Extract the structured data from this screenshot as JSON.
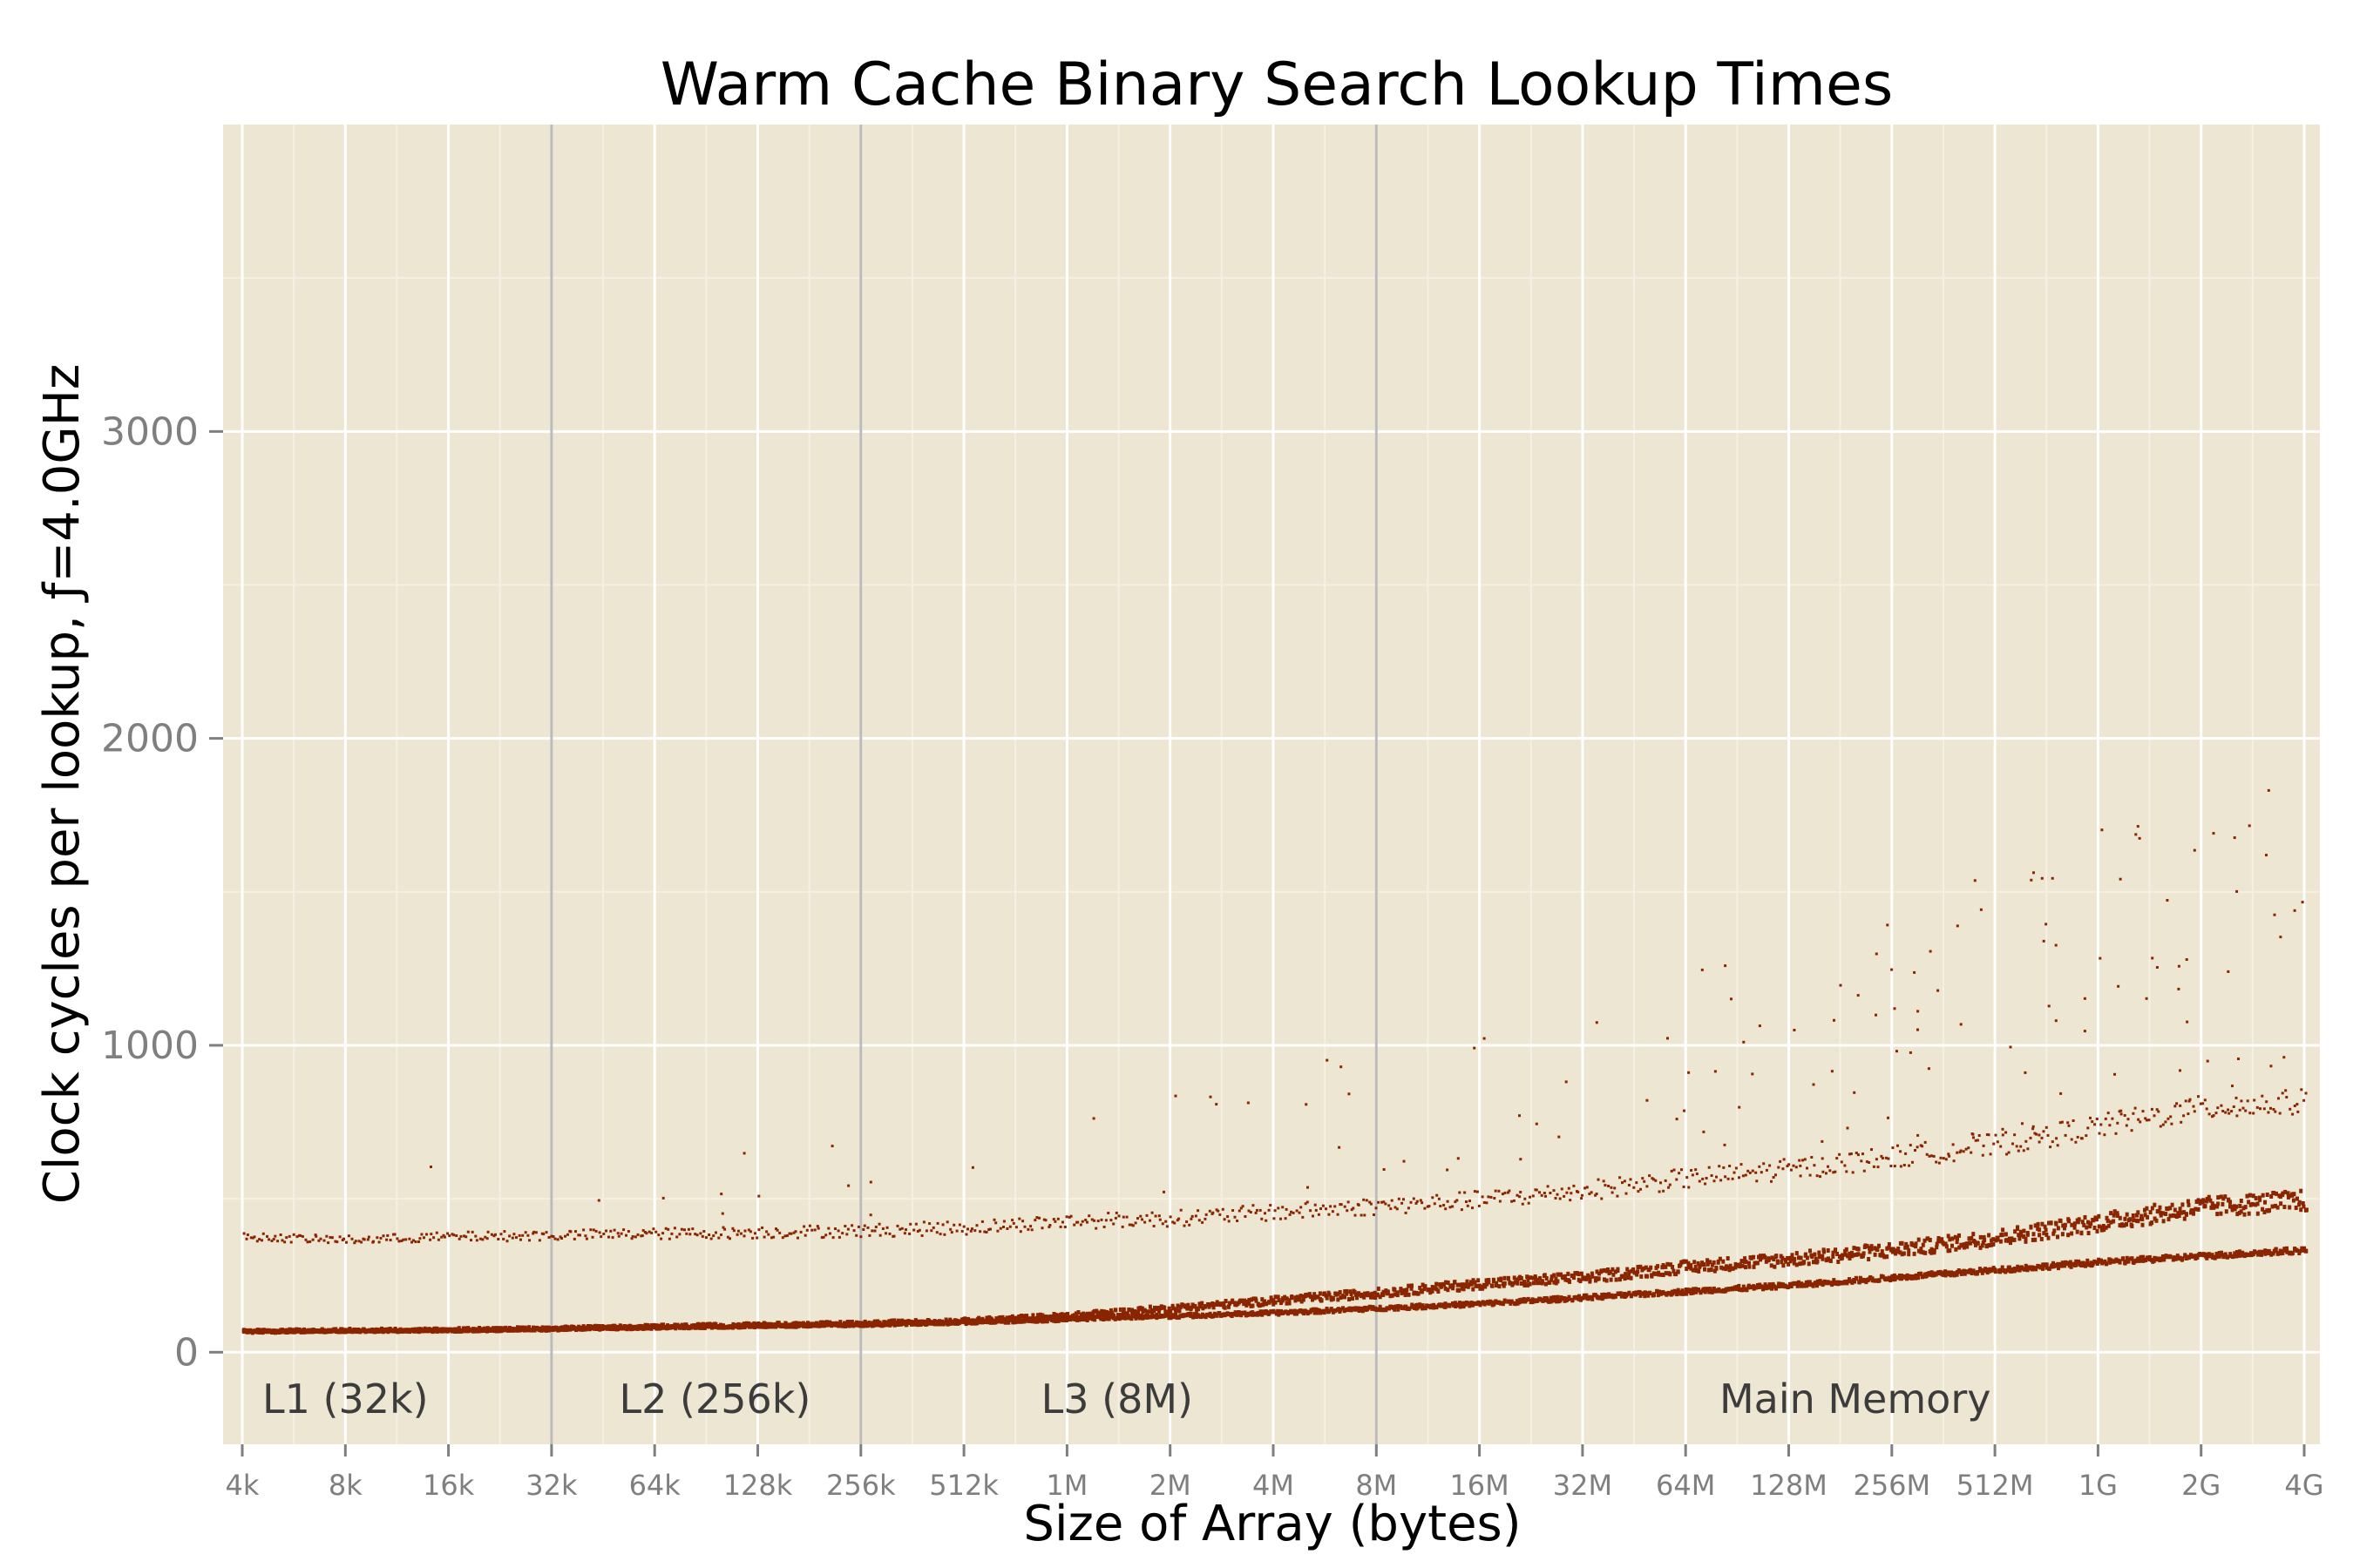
{
  "chart_data": {
    "type": "scatter",
    "title": "Warm Cache Binary Search Lookup Times",
    "xlabel": "Size of Array (bytes)",
    "ylabel": "Clock cycles per lookup, ƒ=4.0GHz",
    "x_scale": "log2",
    "x_ticks": [
      "4k",
      "8k",
      "16k",
      "32k",
      "64k",
      "128k",
      "256k",
      "512k",
      "1M",
      "2M",
      "4M",
      "8M",
      "16M",
      "32M",
      "64M",
      "128M",
      "256M",
      "512M",
      "1G",
      "2G",
      "4G"
    ],
    "xlim": [
      "4k",
      "4G"
    ],
    "y_ticks": [
      0,
      1000,
      2000,
      3000
    ],
    "ylim": [
      -300,
      4000
    ],
    "grid": true,
    "colors": {
      "panel": "#ede6d3",
      "grid_major": "#ffffff",
      "grid_minor": "#f5f0e3",
      "points": "#8b2500",
      "cache_boundary": "#bbbbbb",
      "axis_text": "#7f7f7f",
      "region_text": "#3c3c3c"
    },
    "cache_boundaries": [
      "32k",
      "256k",
      "8M"
    ],
    "region_labels": [
      {
        "text": "L1 (32k)",
        "x": "8k"
      },
      {
        "text": "L2 (256k)",
        "x": "96k"
      },
      {
        "text": "L3 (8M)",
        "x": "1.4M"
      },
      {
        "text": "Main Memory",
        "x": "200M"
      }
    ],
    "series": [
      {
        "band": "main",
        "x": [
          "4k",
          "8k",
          "16k",
          "32k",
          "64k",
          "128k",
          "256k",
          "512k",
          "1M",
          "2M",
          "4M",
          "8M",
          "16M",
          "32M",
          "64M",
          "128M",
          "256M",
          "512M",
          "1G",
          "2G",
          "4G"
        ],
        "y": [
          75,
          78,
          80,
          84,
          90,
          95,
          100,
          108,
          125,
          150,
          175,
          200,
          230,
          250,
          285,
          310,
          340,
          380,
          430,
          480,
          500
        ]
      },
      {
        "band": "lower",
        "x": [
          "4k",
          "8k",
          "16k",
          "32k",
          "64k",
          "128k",
          "256k",
          "512k",
          "1M",
          "2M",
          "4M",
          "8M",
          "16M",
          "32M",
          "64M",
          "128M",
          "256M",
          "512M",
          "1G",
          "2G",
          "4G"
        ],
        "y": [
          75,
          76,
          78,
          82,
          88,
          93,
          98,
          105,
          115,
          125,
          135,
          150,
          165,
          185,
          205,
          225,
          250,
          275,
          300,
          320,
          340
        ]
      },
      {
        "band": "upper",
        "x": [
          "4k",
          "8k",
          "16k",
          "32k",
          "64k",
          "128k",
          "256k",
          "512k",
          "1M",
          "2M",
          "4M",
          "8M",
          "16M",
          "32M",
          "64M",
          "128M",
          "256M",
          "512M",
          "1G",
          "2G",
          "4G"
        ],
        "y": [
          380,
          370,
          380,
          385,
          390,
          395,
          400,
          410,
          430,
          440,
          460,
          480,
          500,
          530,
          570,
          600,
          640,
          680,
          740,
          800,
          820
        ]
      }
    ]
  }
}
